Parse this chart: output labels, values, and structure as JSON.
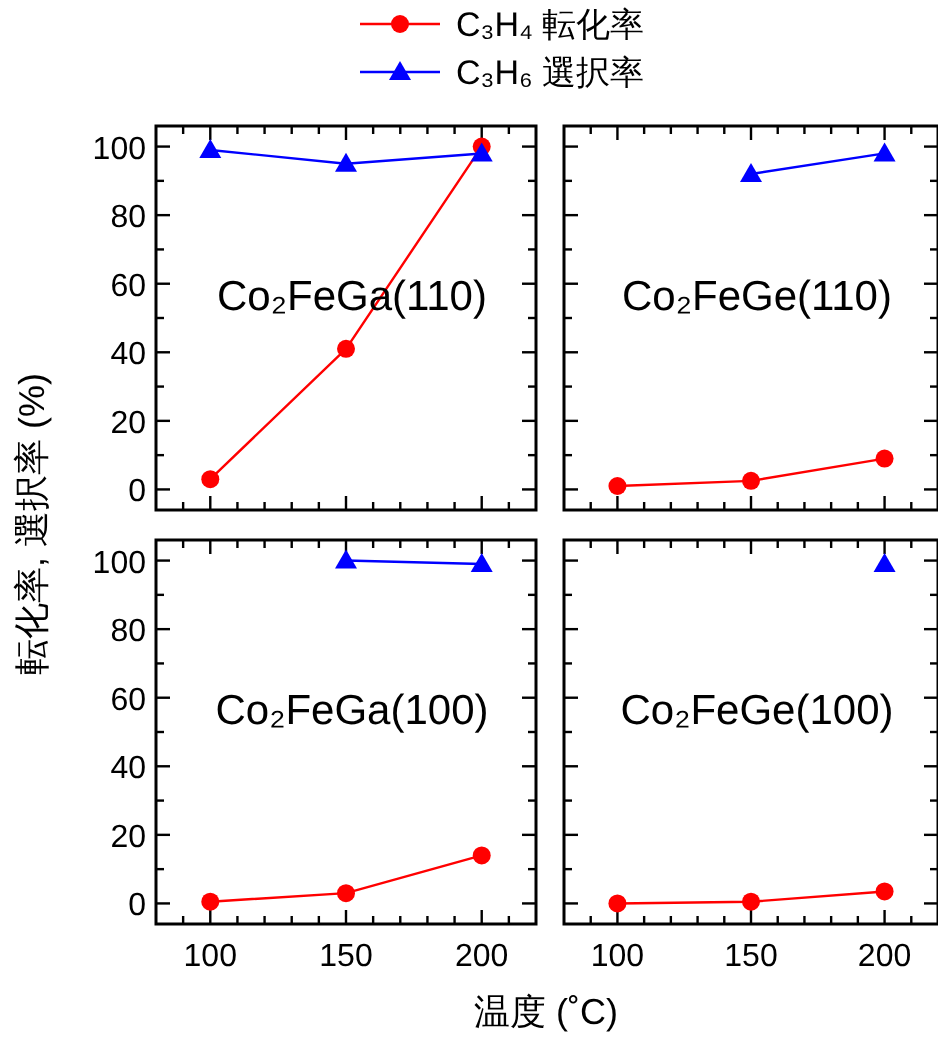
{
  "chart_data": [
    {
      "type": "line",
      "x": [
        100,
        150,
        200
      ],
      "xlim": [
        80,
        220
      ],
      "ylim": [
        -6,
        106
      ],
      "xticks": [
        {
          "value": 90,
          "label": null
        },
        100,
        {
          "value": 110,
          "label": null
        },
        {
          "value": 120,
          "label": null
        },
        {
          "value": 130,
          "label": null
        },
        {
          "value": 140,
          "label": null
        },
        150,
        {
          "value": 160,
          "label": null
        },
        {
          "value": 170,
          "label": null
        },
        {
          "value": 180,
          "label": null
        },
        {
          "value": 190,
          "label": null
        },
        200,
        {
          "value": 210,
          "label": null
        }
      ],
      "yticks": [
        0,
        {
          "value": 10,
          "label": null
        },
        20,
        {
          "value": 30,
          "label": null
        },
        40,
        {
          "value": 50,
          "label": null
        },
        60,
        {
          "value": 70,
          "label": null
        },
        80,
        {
          "value": 90,
          "label": null
        },
        100
      ],
      "tick_labels": "y",
      "legend": "top",
      "ylabel": "転化率, 選択率 (%)",
      "annotations": [
        "Co₂FeGa(110)"
      ],
      "series": [
        {
          "name": "C₃H₄ 転化率",
          "color": "#ff0000",
          "marker": "circle",
          "values": [
            3,
            41,
            100
          ]
        },
        {
          "name": "C₃H₆ 選択率",
          "color": "#0000ff",
          "marker": "triangle",
          "values": [
            99,
            95,
            98
          ]
        }
      ]
    },
    {
      "type": "line",
      "x": [
        100,
        150,
        200
      ],
      "xlim": [
        80,
        220
      ],
      "ylim": [
        -6,
        106
      ],
      "xticks": [
        {
          "value": 90,
          "label": null
        },
        100,
        {
          "value": 110,
          "label": null
        },
        {
          "value": 120,
          "label": null
        },
        {
          "value": 130,
          "label": null
        },
        {
          "value": 140,
          "label": null
        },
        150,
        {
          "value": 160,
          "label": null
        },
        {
          "value": 170,
          "label": null
        },
        {
          "value": 180,
          "label": null
        },
        {
          "value": 190,
          "label": null
        },
        200,
        {
          "value": 210,
          "label": null
        }
      ],
      "yticks": [
        0,
        {
          "value": 10,
          "label": null
        },
        20,
        {
          "value": 30,
          "label": null
        },
        40,
        {
          "value": 50,
          "label": null
        },
        60,
        {
          "value": 70,
          "label": null
        },
        80,
        {
          "value": 90,
          "label": null
        },
        100
      ],
      "tick_labels": false,
      "annotations": [
        "Co₂FeGe(110)"
      ],
      "series": [
        {
          "color": "#ff0000",
          "marker": "circle",
          "values": [
            1,
            2.5,
            9
          ]
        },
        {
          "color": "#0000ff",
          "marker": "triangle",
          "values": [
            null,
            92,
            98
          ]
        }
      ]
    },
    {
      "type": "line",
      "x": [
        100,
        150,
        200
      ],
      "xlim": [
        80,
        220
      ],
      "ylim": [
        -6,
        106
      ],
      "xticks": [
        {
          "value": 90,
          "label": null
        },
        100,
        {
          "value": 110,
          "label": null
        },
        {
          "value": 120,
          "label": null
        },
        {
          "value": 130,
          "label": null
        },
        {
          "value": 140,
          "label": null
        },
        150,
        {
          "value": 160,
          "label": null
        },
        {
          "value": 170,
          "label": null
        },
        {
          "value": 180,
          "label": null
        },
        {
          "value": 190,
          "label": null
        },
        200,
        {
          "value": 210,
          "label": null
        }
      ],
      "yticks": [
        0,
        {
          "value": 10,
          "label": null
        },
        20,
        {
          "value": 30,
          "label": null
        },
        40,
        {
          "value": 50,
          "label": null
        },
        60,
        {
          "value": 70,
          "label": null
        },
        80,
        {
          "value": 90,
          "label": null
        },
        100
      ],
      "xlabel": "温度 (˚C)",
      "annotations": [
        "Co₂FeGa(100)"
      ],
      "series": [
        {
          "color": "#ff0000",
          "marker": "circle",
          "values": [
            0.5,
            3,
            14
          ]
        },
        {
          "color": "#0000ff",
          "marker": "triangle",
          "values": [
            null,
            100,
            99
          ]
        }
      ]
    },
    {
      "type": "line",
      "x": [
        100,
        150,
        200
      ],
      "xlim": [
        80,
        220
      ],
      "ylim": [
        -6,
        106
      ],
      "xticks": [
        {
          "value": 90,
          "label": null
        },
        100,
        {
          "value": 110,
          "label": null
        },
        {
          "value": 120,
          "label": null
        },
        {
          "value": 130,
          "label": null
        },
        {
          "value": 140,
          "label": null
        },
        150,
        {
          "value": 160,
          "label": null
        },
        {
          "value": 170,
          "label": null
        },
        {
          "value": 180,
          "label": null
        },
        {
          "value": 190,
          "label": null
        },
        200,
        {
          "value": 210,
          "label": null
        }
      ],
      "yticks": [
        0,
        {
          "value": 10,
          "label": null
        },
        20,
        {
          "value": 30,
          "label": null
        },
        40,
        {
          "value": 50,
          "label": null
        },
        60,
        {
          "value": 70,
          "label": null
        },
        80,
        {
          "value": 90,
          "label": null
        },
        100
      ],
      "tick_labels": "x",
      "annotations": [
        "Co₂FeGe(100)"
      ],
      "series": [
        {
          "color": "#ff0000",
          "marker": "circle",
          "values": [
            0,
            0.5,
            3.5
          ]
        },
        {
          "color": "#0000ff",
          "marker": "triangle",
          "values": [
            null,
            null,
            99
          ]
        }
      ]
    }
  ]
}
